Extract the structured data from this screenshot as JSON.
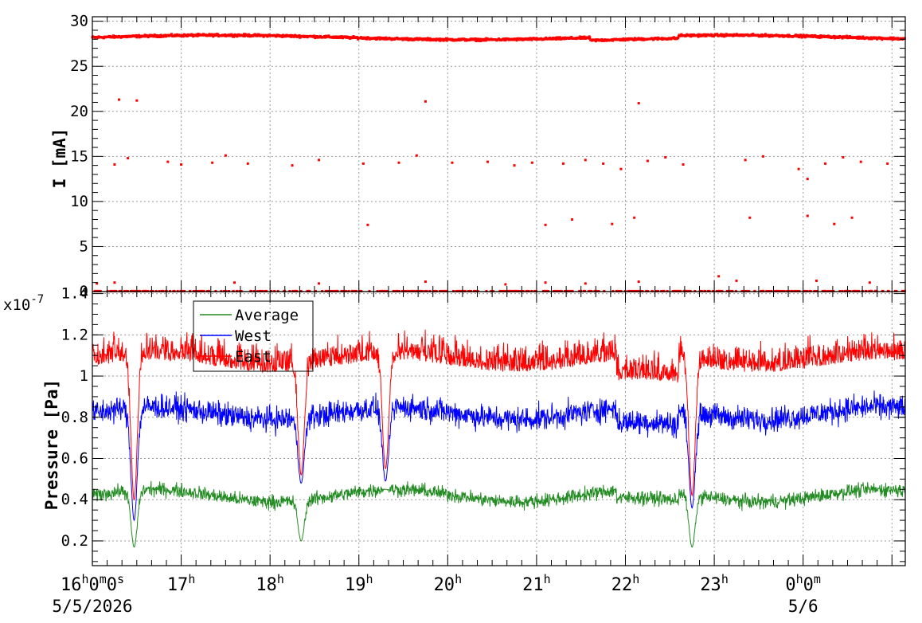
{
  "chart_data": [
    {
      "type": "scatter",
      "ylabel": "I [mA]",
      "ylim": [
        0,
        30.5
      ],
      "yticks": [
        0,
        5,
        10,
        15,
        20,
        25,
        30
      ],
      "grid": true,
      "series": [
        {
          "color": "#ff0000",
          "main_level": 28.2,
          "outliers": [
            {
              "t": 0.3,
              "y": 21.3
            },
            {
              "t": 0.5,
              "y": 21.2
            },
            {
              "t": 3.75,
              "y": 21.1
            },
            {
              "t": 6.15,
              "y": 20.9
            },
            {
              "t": 0.25,
              "y": 14.1
            },
            {
              "t": 0.4,
              "y": 14.8
            },
            {
              "t": 0.85,
              "y": 14.4
            },
            {
              "t": 1.0,
              "y": 14.1
            },
            {
              "t": 1.35,
              "y": 14.3
            },
            {
              "t": 1.5,
              "y": 15.1
            },
            {
              "t": 1.75,
              "y": 14.2
            },
            {
              "t": 2.25,
              "y": 14.0
            },
            {
              "t": 2.55,
              "y": 14.6
            },
            {
              "t": 3.05,
              "y": 14.2
            },
            {
              "t": 3.45,
              "y": 14.3
            },
            {
              "t": 3.65,
              "y": 15.1
            },
            {
              "t": 4.05,
              "y": 14.3
            },
            {
              "t": 4.45,
              "y": 14.4
            },
            {
              "t": 4.75,
              "y": 14.0
            },
            {
              "t": 4.95,
              "y": 14.3
            },
            {
              "t": 5.3,
              "y": 14.2
            },
            {
              "t": 5.55,
              "y": 14.6
            },
            {
              "t": 5.75,
              "y": 14.2
            },
            {
              "t": 5.95,
              "y": 13.6
            },
            {
              "t": 6.25,
              "y": 14.5
            },
            {
              "t": 6.45,
              "y": 14.9
            },
            {
              "t": 6.65,
              "y": 14.1
            },
            {
              "t": 7.35,
              "y": 14.6
            },
            {
              "t": 7.55,
              "y": 15.0
            },
            {
              "t": 7.95,
              "y": 13.6
            },
            {
              "t": 8.05,
              "y": 12.5
            },
            {
              "t": 8.25,
              "y": 14.2
            },
            {
              "t": 8.45,
              "y": 14.9
            },
            {
              "t": 8.65,
              "y": 14.4
            },
            {
              "t": 8.95,
              "y": 14.2
            },
            {
              "t": 3.1,
              "y": 7.4
            },
            {
              "t": 5.1,
              "y": 7.4
            },
            {
              "t": 5.4,
              "y": 8.0
            },
            {
              "t": 5.85,
              "y": 7.5
            },
            {
              "t": 6.1,
              "y": 8.2
            },
            {
              "t": 7.4,
              "y": 8.2
            },
            {
              "t": 8.05,
              "y": 8.4
            },
            {
              "t": 8.35,
              "y": 7.5
            },
            {
              "t": 8.55,
              "y": 8.2
            },
            {
              "t": 0.05,
              "y": 0.9
            },
            {
              "t": 0.25,
              "y": 1.0
            },
            {
              "t": 1.6,
              "y": 1.0
            },
            {
              "t": 2.55,
              "y": 0.9
            },
            {
              "t": 3.75,
              "y": 1.1
            },
            {
              "t": 4.65,
              "y": 0.8
            },
            {
              "t": 5.1,
              "y": 1.0
            },
            {
              "t": 5.55,
              "y": 0.9
            },
            {
              "t": 6.15,
              "y": 1.1
            },
            {
              "t": 7.05,
              "y": 1.7
            },
            {
              "t": 7.25,
              "y": 1.2
            },
            {
              "t": 8.15,
              "y": 1.2
            },
            {
              "t": 8.75,
              "y": 1.0
            }
          ]
        }
      ]
    },
    {
      "type": "line",
      "ylabel": "Pressure [Pa]",
      "yscale_label": "x10",
      "yscale_exponent": "-7",
      "ylim": [
        0.08,
        1.41
      ],
      "yticks": [
        "0.2",
        "0.4",
        "0.6",
        "0.8",
        "1",
        "1.2",
        "1.4"
      ],
      "grid": true,
      "legend_position": "top-left",
      "series": [
        {
          "name": "Average",
          "color": "#228b22",
          "level": 0.42,
          "noise": 0.05
        },
        {
          "name": "West",
          "color": "#0000ff",
          "level": 0.82,
          "noise": 0.09
        },
        {
          "name": "East",
          "color": "#ff0000",
          "level": 1.12,
          "noise": 0.12
        }
      ],
      "dips": [
        {
          "t": 0.47,
          "average": 0.17,
          "west": 0.3,
          "east": 0.4
        },
        {
          "t": 2.35,
          "average": 0.2,
          "west": 0.48,
          "east": 0.52
        },
        {
          "t": 3.3,
          "average": 0.45,
          "west": 0.49,
          "east": 0.55
        },
        {
          "t": 6.75,
          "average": 0.17,
          "west": 0.36,
          "east": 0.42
        }
      ]
    }
  ],
  "x_axis": {
    "start_hour": 16,
    "span_hours": 9.15,
    "tick_labels": [
      {
        "t": 0,
        "base": "16",
        "parts": [
          [
            "h",
            "0"
          ],
          [
            "m",
            "0"
          ],
          [
            "s",
            ""
          ]
        ],
        "display": "16h0m0s"
      },
      {
        "t": 1,
        "base": "17",
        "parts": [
          [
            "h",
            ""
          ]
        ],
        "display": "17h"
      },
      {
        "t": 2,
        "base": "18",
        "parts": [
          [
            "h",
            ""
          ]
        ],
        "display": "18h"
      },
      {
        "t": 3,
        "base": "19",
        "parts": [
          [
            "h",
            ""
          ]
        ],
        "display": "19h"
      },
      {
        "t": 4,
        "base": "20",
        "parts": [
          [
            "h",
            ""
          ]
        ],
        "display": "20h"
      },
      {
        "t": 5,
        "base": "21",
        "parts": [
          [
            "h",
            ""
          ]
        ],
        "display": "21h"
      },
      {
        "t": 6,
        "base": "22",
        "parts": [
          [
            "h",
            ""
          ]
        ],
        "display": "22h"
      },
      {
        "t": 7,
        "base": "23",
        "parts": [
          [
            "h",
            ""
          ]
        ],
        "display": "23h"
      },
      {
        "t": 8,
        "base": "0",
        "parts": [
          [
            "h",
            "0"
          ],
          [
            "m",
            ""
          ]
        ],
        "display": "0h0m"
      }
    ],
    "dates": [
      {
        "t": 0,
        "label": "5/5/2026"
      },
      {
        "t": 8,
        "label": "5/6"
      }
    ]
  }
}
